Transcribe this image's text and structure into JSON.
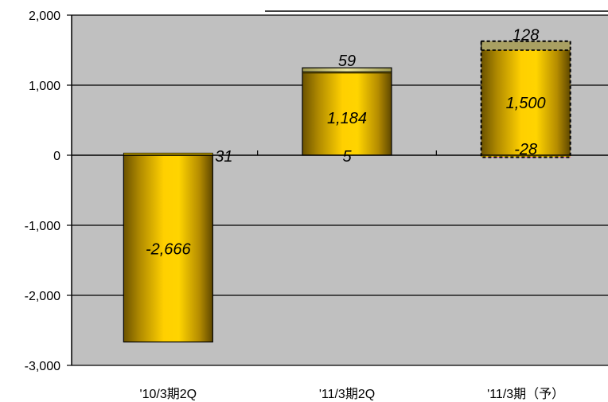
{
  "chart_data": {
    "type": "bar",
    "stacked": true,
    "categories": [
      "'10/3期2Q",
      "'11/3期2Q",
      "'11/3期（予）"
    ],
    "ylim": [
      -3000,
      2000
    ],
    "yticks": [
      -3000,
      -2000,
      -1000,
      0,
      1000,
      2000
    ],
    "ytick_labels": [
      "-3,000",
      "-2,000",
      "-1,000",
      "0",
      "1,000",
      "2,000"
    ],
    "grid": true,
    "series": [
      {
        "values": [
          -2666,
          1184,
          1500
        ],
        "labels": [
          "-2,666",
          "1,184",
          "1,500"
        ],
        "color": "#f5c400"
      },
      {
        "values": [
          31,
          5,
          -28
        ],
        "labels": [
          "31",
          "5",
          "-28"
        ],
        "color": "#e0b800"
      },
      {
        "values": [
          null,
          59,
          128
        ],
        "labels": [
          "",
          "59",
          "128"
        ],
        "color": "#d8d27a"
      }
    ],
    "forecast_category_index": 2,
    "plot_background": "#c0c0c0"
  }
}
